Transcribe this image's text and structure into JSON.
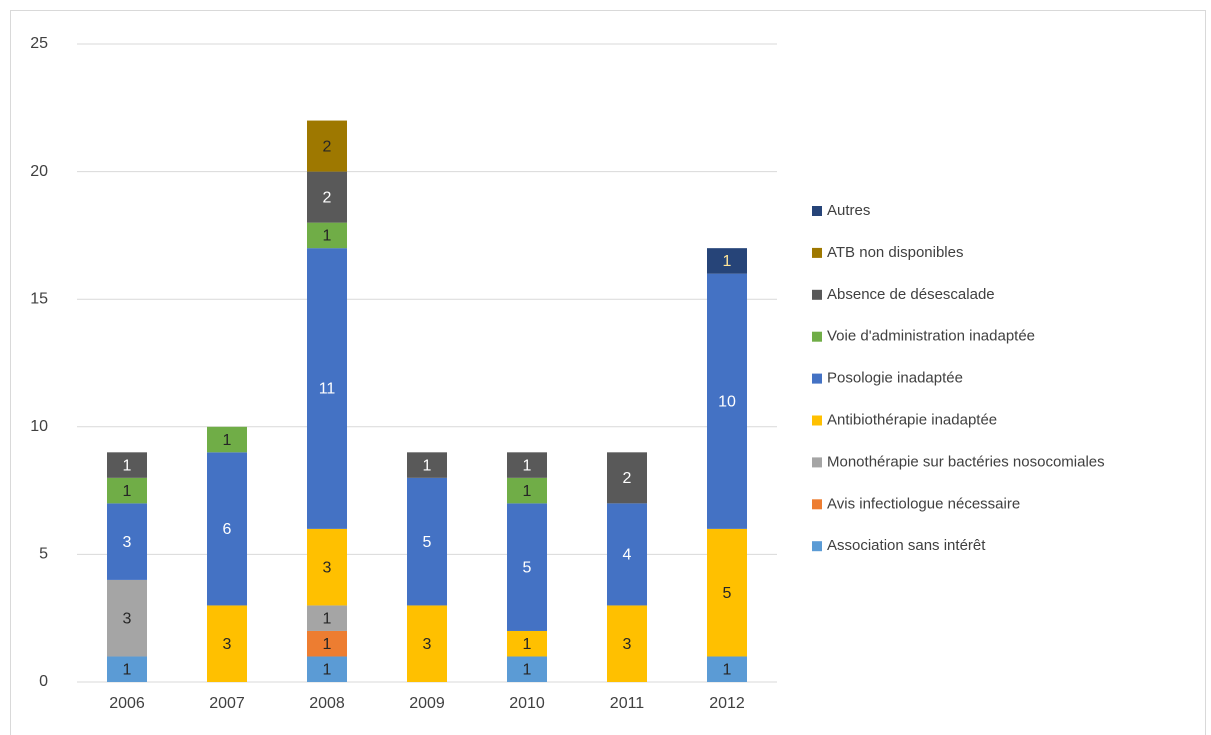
{
  "chart_data": {
    "type": "stacked_bar",
    "categories": [
      "2006",
      "2007",
      "2008",
      "2009",
      "2010",
      "2011",
      "2012"
    ],
    "series": [
      {
        "name": "Association sans intérêt",
        "color": "#5b9bd5",
        "label_color": "#262626",
        "values": [
          1,
          null,
          1,
          null,
          1,
          null,
          1
        ]
      },
      {
        "name": "Avis infectiologue nécessaire",
        "color": "#ed7d31",
        "label_color": "#262626",
        "values": [
          null,
          null,
          1,
          null,
          null,
          null,
          null
        ]
      },
      {
        "name": "Monothérapie sur bactéries nosocomiales",
        "color": "#a5a5a5",
        "label_color": "#262626",
        "values": [
          3,
          null,
          1,
          null,
          null,
          null,
          null
        ]
      },
      {
        "name": "Antibiothérapie inadaptée",
        "color": "#ffc000",
        "label_color": "#262626",
        "values": [
          null,
          3,
          3,
          3,
          1,
          3,
          5
        ]
      },
      {
        "name": "Posologie inadaptée",
        "color": "#4472c4",
        "label_color": "#ffffff",
        "values": [
          3,
          6,
          11,
          5,
          5,
          4,
          10
        ]
      },
      {
        "name": "Voie d'administration inadaptée",
        "color": "#70ad47",
        "label_color": "#262626",
        "values": [
          1,
          1,
          1,
          null,
          1,
          null,
          null
        ]
      },
      {
        "name": "Absence de désescalade",
        "color": "#595959",
        "label_color": "#ffffff",
        "values": [
          1,
          null,
          2,
          1,
          1,
          2,
          null
        ]
      },
      {
        "name": "ATB non disponibles",
        "color": "#9e7800",
        "label_color": "#262626",
        "values": [
          null,
          null,
          2,
          null,
          null,
          null,
          null
        ]
      },
      {
        "name": "Autres",
        "color": "#264478",
        "label_color": "#ffe699",
        "values": [
          null,
          null,
          null,
          null,
          null,
          null,
          1
        ]
      }
    ],
    "ylim": [
      0,
      25
    ],
    "yticks": [
      0,
      5,
      10,
      15,
      20,
      25
    ],
    "grid": true,
    "legend": "right"
  }
}
